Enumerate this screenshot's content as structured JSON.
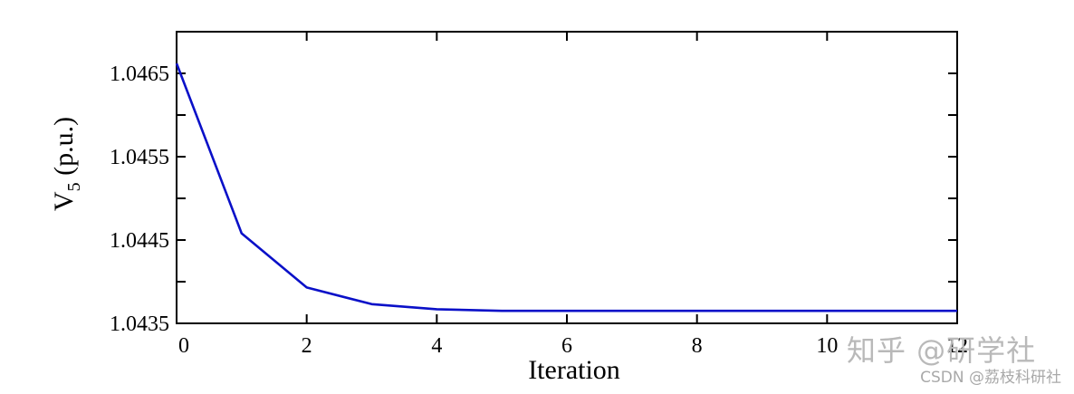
{
  "chart_data": {
    "type": "line",
    "xlabel": "Iteration",
    "ylabel": "V",
    "ylabel_subscript": "5",
    "ylabel_unit": " (p.u.)",
    "xlim": [
      0,
      12
    ],
    "ylim": [
      1.0435,
      1.047
    ],
    "x_ticks": [
      0,
      2,
      4,
      6,
      8,
      10,
      12
    ],
    "x_tick_labels": [
      "0",
      "2",
      "4",
      "6",
      "8",
      "10",
      "12"
    ],
    "y_ticks": [
      1.0435,
      1.0445,
      1.0455,
      1.0465
    ],
    "y_tick_labels": [
      "1.0435",
      "1.0445",
      "1.0455",
      "1.0465"
    ],
    "y_minor_ticks": [
      1.044,
      1.045,
      1.046
    ],
    "grid": false,
    "series": [
      {
        "color": "#0a10c8",
        "x": [
          0,
          1,
          2,
          3,
          4,
          5,
          6,
          7,
          8,
          9,
          10,
          11,
          12
        ],
        "y": [
          1.04662,
          1.04458,
          1.04393,
          1.04373,
          1.04367,
          1.04365,
          1.04365,
          1.04365,
          1.04365,
          1.04365,
          1.04365,
          1.04365,
          1.04365
        ]
      }
    ]
  },
  "watermark": {
    "main": "知乎 @研学社",
    "sub": "CSDN @荔枝科研社"
  }
}
